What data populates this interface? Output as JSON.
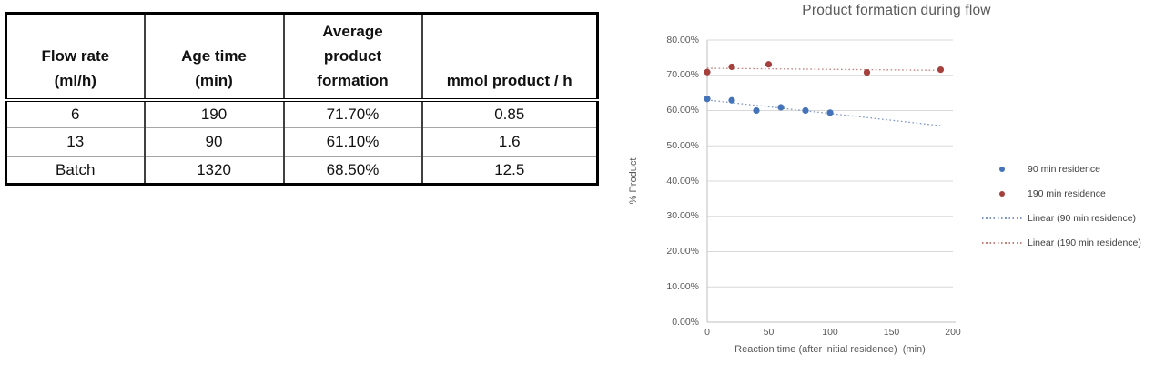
{
  "table": {
    "headers": [
      "Flow rate\n(ml/h)",
      "Age time\n(min)",
      "Average\nproduct\nformation",
      "mmol product / h"
    ],
    "rows": [
      [
        "6",
        "190",
        "71.70%",
        "0.85"
      ],
      [
        "13",
        "90",
        "61.10%",
        "1.6"
      ],
      [
        "Batch",
        "1320",
        "68.50%",
        "12.5"
      ]
    ]
  },
  "chart_data": {
    "type": "scatter",
    "title": "Product formation during flow",
    "xlabel": "Reaction time (after initial residence)  (min)",
    "ylabel": "% Product",
    "xlim": [
      0,
      200
    ],
    "ylim": [
      0,
      80
    ],
    "x_ticks": [
      0,
      50,
      100,
      150,
      200
    ],
    "x_tick_labels": [
      "0",
      "50",
      "100",
      "150",
      "200"
    ],
    "y_ticks": [
      0,
      10,
      20,
      30,
      40,
      50,
      60,
      70,
      80
    ],
    "y_tick_labels": [
      "0.00%",
      "10.00%",
      "20.00%",
      "30.00%",
      "40.00%",
      "50.00%",
      "60.00%",
      "70.00%",
      "80.00%"
    ],
    "grid": true,
    "legend_position": "right",
    "series": [
      {
        "name": "90 min residence",
        "slug": "90-min-residence",
        "color": "#4573B9",
        "x": [
          0,
          20,
          40,
          60,
          80,
          100
        ],
        "y": [
          63.3,
          62.9,
          60.0,
          60.9,
          60.0,
          59.4
        ]
      },
      {
        "name": "190 min residence",
        "slug": "190-min-residence",
        "color": "#A5403D",
        "x": [
          0,
          20,
          50,
          130,
          190
        ],
        "y": [
          70.9,
          72.4,
          73.1,
          70.8,
          71.6
        ]
      }
    ],
    "trendlines": [
      {
        "name": "Linear (90 min residence)",
        "slug": "linear-90-min-residence",
        "color": "#7D97C6",
        "x": [
          0,
          190
        ],
        "y": [
          63.0,
          55.7
        ]
      },
      {
        "name": "Linear (190 min residence)",
        "slug": "linear-190-min-residence",
        "color": "#C4817C",
        "x": [
          0,
          190
        ],
        "y": [
          72.0,
          71.4
        ]
      }
    ],
    "legend": [
      {
        "label": "90 min residence",
        "marker": "dot",
        "color": "#4573B9"
      },
      {
        "label": "190 min residence",
        "marker": "dot",
        "color": "#A5403D"
      },
      {
        "label": "Linear (90 min residence)",
        "marker": "line",
        "color": "#7D97C6"
      },
      {
        "label": "Linear (190 min residence)",
        "marker": "line",
        "color": "#C4817C"
      }
    ],
    "colors": {
      "gridline": "#D9D9D9",
      "axis": "#BFBFBF",
      "tick_text": "#595959",
      "title_text": "#595959"
    }
  }
}
